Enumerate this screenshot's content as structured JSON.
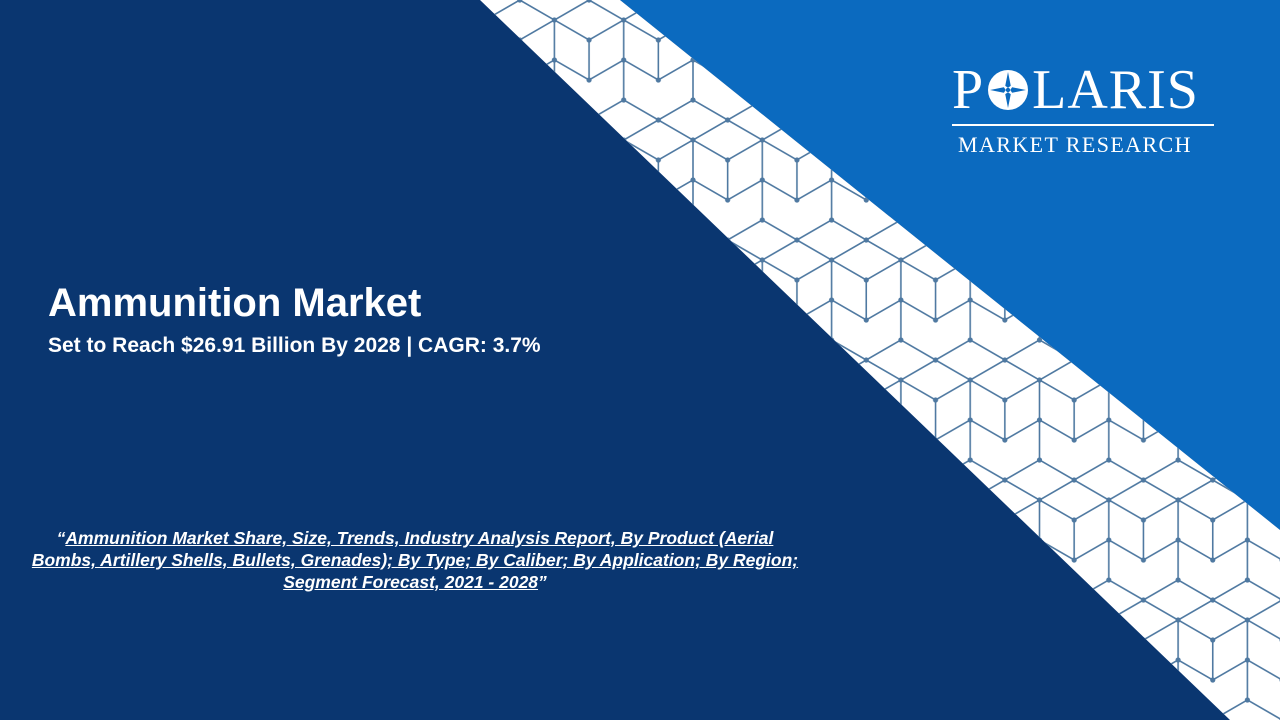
{
  "hero": {
    "title": "Ammunition Market",
    "subtitle": "Set to Reach $26.91 Billion By 2028 | CAGR: 3.7%"
  },
  "report": {
    "open_quote": "“",
    "title": "Ammunition Market Share, Size, Trends, Industry Analysis Report, By Product (Aerial Bombs, Artillery Shells, Bullets, Grenades); By Type; By Caliber; By Application; By Region; Segment Forecast, 2021 - 2028",
    "close_quote": "”"
  },
  "logo": {
    "brand_pre": "P",
    "brand_post": "LARIS",
    "tagline": "MARKET RESEARCH",
    "icon": "compass-star-icon"
  },
  "colors": {
    "background_dark": "#0a3670",
    "panel_blue": "#0b6abf",
    "band_white": "#ffffff",
    "pattern_line": "#4f79a1"
  }
}
